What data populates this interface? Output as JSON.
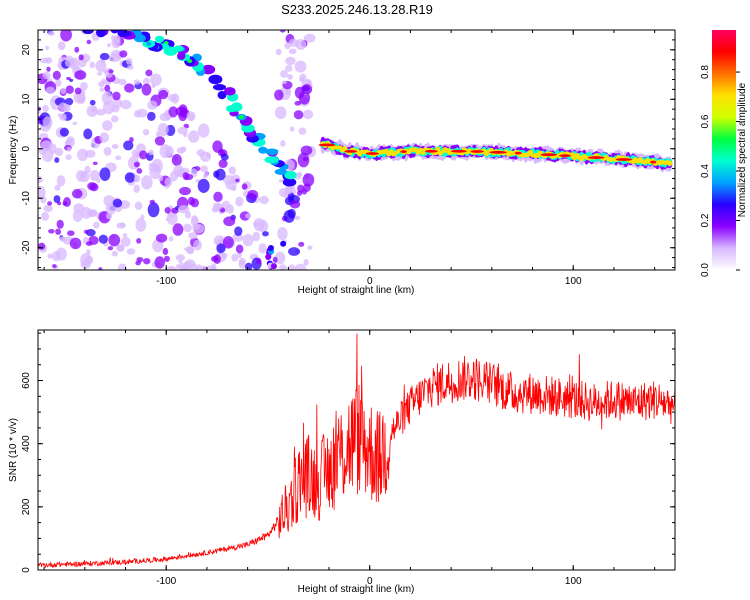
{
  "title": "S233.2025.246.13.28.R19",
  "colorbar": {
    "label": "Normalized spectral amplitude",
    "ticks": [
      "0.0",
      "0.2",
      "0.4",
      "0.6",
      "0.8"
    ],
    "tick_values": [
      0.0,
      0.2,
      0.4,
      0.6,
      0.8
    ],
    "range": [
      0,
      0.97
    ],
    "colors": [
      "#ffffff",
      "#d8b8ff",
      "#8a00ff",
      "#2a00ff",
      "#00a0ff",
      "#00ffd0",
      "#00ff40",
      "#d0ff00",
      "#ffe000",
      "#ff7000",
      "#ff0000",
      "#ff0060"
    ]
  },
  "chart_data": [
    {
      "type": "heatmap",
      "xlabel": "Height of straight line (km)",
      "ylabel": "Frequency (Hz)",
      "xlim": [
        -163,
        150
      ],
      "ylim": [
        -24.5,
        24
      ],
      "xticks": [
        -100,
        0,
        100
      ],
      "yticks": [
        -20,
        -10,
        0,
        10,
        20
      ],
      "ridge": {
        "description_points_x": [
          -23,
          -10,
          0,
          20,
          50,
          80,
          100,
          120,
          148
        ],
        "frequency_hz": [
          1,
          -0.5,
          -1,
          -0.5,
          -0.5,
          -1,
          -1.5,
          -2,
          -3
        ]
      },
      "branch": {
        "x": [
          -38,
          -45,
          -55,
          -62,
          -70,
          -80,
          -90,
          -100,
          -110,
          -120,
          -140
        ],
        "frequency_hz": [
          -6,
          -3,
          2,
          6,
          11,
          16,
          19,
          21,
          22,
          23,
          24
        ]
      }
    },
    {
      "type": "line",
      "xlabel": "Height of straight line (km)",
      "ylabel": "SNR (10 * v/v)",
      "xlim": [
        -163,
        150
      ],
      "ylim": [
        0,
        760
      ],
      "xticks": [
        -100,
        0,
        100
      ],
      "yticks": [
        0,
        200,
        400,
        600
      ],
      "color": "#ff0000",
      "series": [
        {
          "x": [
            -163,
            -140,
            -120,
            -100,
            -80,
            -60,
            -50,
            -40,
            -35,
            -30,
            -25,
            -20,
            -15,
            -10,
            -5,
            0,
            5,
            10,
            20,
            30,
            40,
            50,
            60,
            70,
            80,
            90,
            100,
            110,
            120,
            130,
            140,
            150
          ],
          "values": [
            15,
            20,
            25,
            35,
            55,
            80,
            110,
            200,
            280,
            300,
            280,
            320,
            360,
            400,
            420,
            380,
            350,
            430,
            520,
            580,
            600,
            610,
            590,
            560,
            560,
            550,
            540,
            530,
            540,
            530,
            540,
            520
          ]
        }
      ]
    }
  ]
}
